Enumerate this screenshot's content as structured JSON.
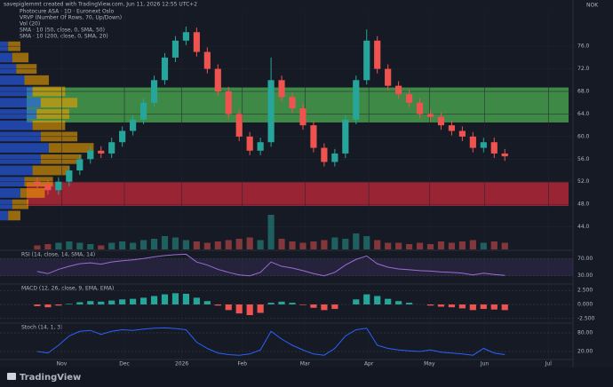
{
  "header": "savepiglemmt created with TradingView.com, Jun 11, 2026 12:55 UTC+2",
  "currency": "NOK",
  "legend": [
    "Photocure ASA · 1D · Euronext Oslo",
    "VRVP (Number Of Rows, 70, Up/Down)",
    "Vol (20)",
    "SMA · 10 (50, close, 0, SMA, 50)",
    "SMA · 10 (200, close, 0, SMA, 20)"
  ],
  "brand": "TradingView",
  "chart_data": {
    "type": "candlestick",
    "xlim": [
      -1,
      50
    ],
    "xticks": [
      {
        "value": 2.3,
        "label": "Nov"
      },
      {
        "value": 8.2,
        "label": "Dec"
      },
      {
        "value": 13.6,
        "label": "2026"
      },
      {
        "value": 19.3,
        "label": "Feb"
      },
      {
        "value": 25.2,
        "label": "Mar"
      },
      {
        "value": 31.2,
        "label": "Apr"
      },
      {
        "value": 36.9,
        "label": "May"
      },
      {
        "value": 42.1,
        "label": "Jun"
      },
      {
        "value": 48.1,
        "label": "Jul"
      }
    ],
    "ylim": [
      40,
      82
    ],
    "yticks": [
      {
        "value": 44,
        "label": "44.0"
      },
      {
        "value": 48,
        "label": "48.0"
      },
      {
        "value": 52,
        "label": "52.0"
      },
      {
        "value": 56,
        "label": "56.0"
      },
      {
        "value": 60,
        "label": "60.0"
      },
      {
        "value": 64,
        "label": "64.0"
      },
      {
        "value": 68,
        "label": "68.0"
      },
      {
        "value": 72,
        "label": "72.0"
      },
      {
        "value": 76,
        "label": "76.0"
      }
    ],
    "up_color": "#26a69a",
    "down_color": "#ef5350",
    "open": [
      52,
      51.5,
      50.5,
      52,
      54,
      56,
      57.5,
      57,
      59,
      61,
      63,
      66,
      70,
      74,
      77,
      78.5,
      75,
      72,
      68,
      64,
      60,
      57.5,
      59,
      70,
      67,
      65,
      62,
      58,
      55.5,
      57,
      63,
      70,
      77,
      72,
      69,
      67.5,
      66,
      64,
      63.5,
      62,
      61,
      60,
      58,
      59,
      57
    ],
    "high": [
      52.8,
      52.3,
      52.8,
      54.8,
      56.8,
      58.3,
      58.3,
      59.8,
      61.8,
      63.8,
      66.8,
      70.8,
      74.8,
      77.8,
      79.5,
      79.3,
      75.8,
      72.8,
      68.8,
      64.8,
      60.8,
      59.8,
      74,
      70.8,
      67.8,
      65.8,
      62.8,
      58.8,
      57.8,
      63.8,
      70.8,
      79,
      77.8,
      72.8,
      69.8,
      68.3,
      66.8,
      64.8,
      64.3,
      62.8,
      61.8,
      60.8,
      59.8,
      59.8,
      57.8
    ],
    "low": [
      50.7,
      49.7,
      49.7,
      51.2,
      53.2,
      55.2,
      56.2,
      56.2,
      58.2,
      60.2,
      62.2,
      65.2,
      69.2,
      73.2,
      76.2,
      74.2,
      71.2,
      67.2,
      63.2,
      59.2,
      56.7,
      56.7,
      58.2,
      66.2,
      64.2,
      61.2,
      57.2,
      54.7,
      54.7,
      56.2,
      62.2,
      69.2,
      71.2,
      68.2,
      66.7,
      65.2,
      63.2,
      62.7,
      61.2,
      60.2,
      59.2,
      57.2,
      57.2,
      56.2,
      55.7
    ],
    "close": [
      51.5,
      50.5,
      52,
      54,
      56,
      57.5,
      57,
      59,
      61,
      63,
      66,
      70,
      74,
      77,
      78.5,
      75,
      72,
      68,
      64,
      60,
      57.5,
      59,
      70,
      67,
      65,
      62,
      58,
      55.5,
      57,
      63,
      70,
      77,
      72,
      69,
      67.5,
      66,
      64,
      63.5,
      62,
      61,
      60,
      58,
      59,
      57,
      56.5
    ],
    "volume": [
      0.3,
      0.4,
      0.5,
      0.6,
      0.5,
      0.4,
      0.3,
      0.5,
      0.6,
      0.5,
      0.7,
      0.8,
      1.0,
      0.9,
      0.7,
      0.6,
      0.5,
      0.6,
      0.7,
      0.8,
      0.9,
      0.7,
      2.6,
      0.8,
      0.6,
      0.5,
      0.6,
      0.7,
      0.9,
      0.8,
      1.2,
      1.0,
      0.7,
      0.5,
      0.5,
      0.4,
      0.5,
      0.4,
      0.6,
      0.5,
      0.6,
      0.7,
      0.5,
      0.6,
      0.5
    ],
    "vlim": [
      0,
      3
    ],
    "zones": [
      {
        "low": 47.7,
        "high": 51.9,
        "color": "#c62a3a"
      },
      {
        "low": 62.5,
        "high": 68.7,
        "color": "#4caf50"
      }
    ],
    "volume_profile": {
      "prices": [
        46,
        48,
        50,
        52,
        54,
        56,
        58,
        60,
        62,
        64,
        66,
        68,
        70,
        72,
        74,
        76
      ],
      "up": [
        1,
        1.5,
        2.5,
        3,
        4,
        5,
        6,
        5,
        4,
        4.5,
        5,
        4,
        3,
        2,
        1.5,
        1
      ],
      "down": [
        1.5,
        2,
        3,
        3.5,
        4.5,
        5,
        5.5,
        4.5,
        4,
        4,
        4.5,
        4,
        3,
        2.5,
        2,
        1.5
      ],
      "xlim": [
        0,
        12
      ],
      "up_color": "#2962ff",
      "down_color": "#f0a000"
    },
    "rsi": {
      "title": "RSI (14, close, 14, SMA, 14)",
      "color": "#9c6bd8",
      "ylim": [
        15,
        85
      ],
      "yticks": [
        {
          "value": 70,
          "label": "70.00"
        },
        {
          "value": 30,
          "label": "30.00"
        }
      ],
      "values": [
        40,
        35,
        45,
        52,
        58,
        60,
        57,
        62,
        65,
        67,
        70,
        74,
        77,
        79,
        80,
        62,
        55,
        45,
        38,
        32,
        30,
        38,
        62,
        52,
        48,
        42,
        35,
        30,
        38,
        55,
        68,
        76,
        58,
        50,
        46,
        44,
        42,
        41,
        39,
        38,
        36,
        32,
        36,
        33,
        31
      ]
    },
    "macd": {
      "title": "MACD (12, 26, close, 9, EMA, EMA)",
      "ylim": [
        -3,
        3
      ],
      "yticks": [
        {
          "value": 2.5,
          "label": "2.500"
        },
        {
          "value": 0,
          "label": "0.000"
        },
        {
          "value": -2.5,
          "label": "-2.500"
        }
      ],
      "values": [
        -0.3,
        -0.5,
        -0.2,
        0.1,
        0.4,
        0.6,
        0.5,
        0.7,
        0.9,
        1.0,
        1.2,
        1.5,
        1.8,
        2.0,
        1.9,
        1.2,
        0.6,
        -0.2,
        -1.0,
        -1.6,
        -1.9,
        -1.5,
        0.3,
        0.5,
        0.3,
        -0.1,
        -0.6,
        -1.0,
        -0.8,
        0,
        0.9,
        1.8,
        1.5,
        1.0,
        0.6,
        0.3,
        0,
        -0.2,
        -0.4,
        -0.5,
        -0.7,
        -1.0,
        -0.8,
        -0.9,
        -1.0
      ]
    },
    "stoch": {
      "title": "Stoch (14, 1, 3)",
      "color": "#2962ff",
      "ylim": [
        0,
        100
      ],
      "yticks": [
        {
          "value": 80,
          "label": "80.00"
        },
        {
          "value": 20,
          "label": "20.00"
        }
      ],
      "values": [
        20,
        15,
        40,
        70,
        85,
        88,
        75,
        85,
        90,
        88,
        92,
        95,
        96,
        94,
        90,
        50,
        30,
        15,
        10,
        8,
        12,
        25,
        85,
        60,
        40,
        25,
        12,
        8,
        30,
        70,
        90,
        95,
        40,
        30,
        25,
        22,
        20,
        25,
        18,
        15,
        12,
        8,
        30,
        15,
        10
      ]
    }
  }
}
